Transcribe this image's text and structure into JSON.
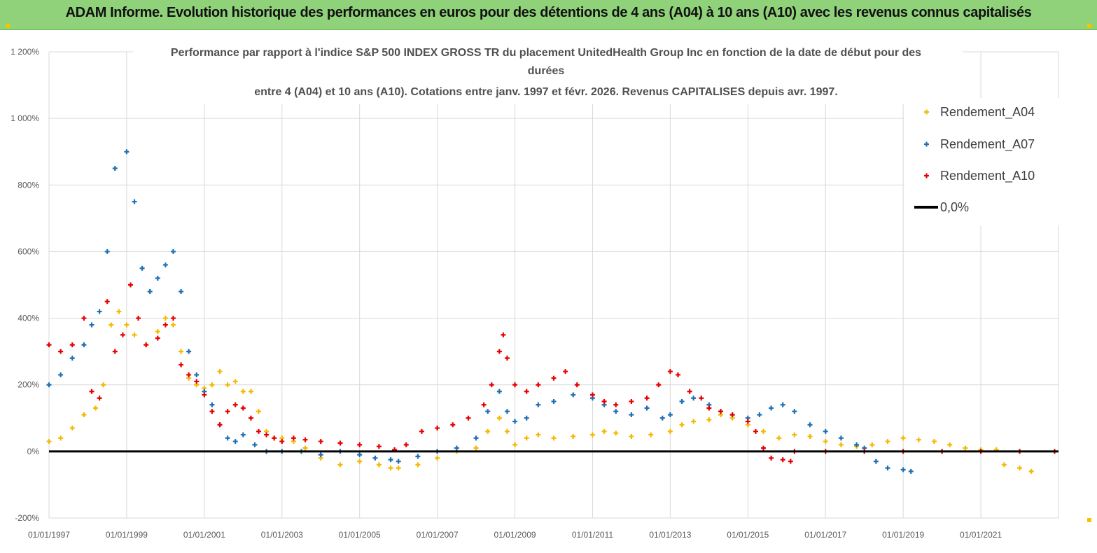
{
  "banner": {
    "title": "ADAM Informe. Evolution historique des performances en euros pour des détentions de 4 ans (A04) à 10 ans (A10) avec les revenus connus capitalisés"
  },
  "chart_data": {
    "type": "scatter",
    "title_lines": [
      "Performance par rapport à l'indice S&P 500 INDEX GROSS TR  du placement UnitedHealth Group Inc en fonction de la date de début pour des",
      "durées",
      "entre 4 (A04) et 10 ans (A10). Cotations entre janv. 1997 et févr. 2026. Revenus CAPITALISES depuis avr. 1997."
    ],
    "xlabel": "",
    "ylabel": "",
    "ylim": [
      -200,
      1200
    ],
    "xlim": [
      1997.0,
      2023.0
    ],
    "y_ticks": [
      "1 200%",
      "1 000%",
      "800%",
      "600%",
      "400%",
      "200%",
      "0%",
      "-200%"
    ],
    "y_tick_values": [
      1200,
      1000,
      800,
      600,
      400,
      200,
      0,
      -200
    ],
    "x_ticks": [
      "01/01/1997",
      "01/01/1999",
      "01/01/2001",
      "01/01/2003",
      "01/01/2005",
      "01/01/2007",
      "01/01/2009",
      "01/01/2011",
      "01/01/2013",
      "01/01/2015",
      "01/01/2017",
      "01/01/2019",
      "01/01/2021"
    ],
    "x_tick_values": [
      1997,
      1999,
      2001,
      2003,
      2005,
      2007,
      2009,
      2011,
      2013,
      2015,
      2017,
      2019,
      2021
    ],
    "grid": true,
    "legend_position": "top-right",
    "zero_line": {
      "label": "0,0%",
      "value": 0,
      "color": "#000000"
    },
    "series": [
      {
        "name": "Rendement_A04",
        "color": "#f5b800",
        "points": [
          [
            1997.0,
            30
          ],
          [
            1997.3,
            40
          ],
          [
            1997.6,
            70
          ],
          [
            1997.9,
            110
          ],
          [
            1998.2,
            130
          ],
          [
            1998.4,
            200
          ],
          [
            1998.6,
            380
          ],
          [
            1998.8,
            420
          ],
          [
            1999.0,
            380
          ],
          [
            1999.2,
            350
          ],
          [
            1999.5,
            320
          ],
          [
            1999.8,
            360
          ],
          [
            2000.0,
            400
          ],
          [
            2000.2,
            380
          ],
          [
            2000.4,
            300
          ],
          [
            2000.6,
            220
          ],
          [
            2000.8,
            200
          ],
          [
            2001.0,
            190
          ],
          [
            2001.2,
            200
          ],
          [
            2001.4,
            240
          ],
          [
            2001.6,
            200
          ],
          [
            2001.8,
            210
          ],
          [
            2002.0,
            180
          ],
          [
            2002.2,
            180
          ],
          [
            2002.4,
            120
          ],
          [
            2002.6,
            60
          ],
          [
            2002.8,
            40
          ],
          [
            2003.0,
            40
          ],
          [
            2003.3,
            30
          ],
          [
            2003.6,
            10
          ],
          [
            2004.0,
            -20
          ],
          [
            2004.5,
            -40
          ],
          [
            2005.0,
            -30
          ],
          [
            2005.5,
            -40
          ],
          [
            2005.8,
            -50
          ],
          [
            2006.0,
            -50
          ],
          [
            2006.5,
            -40
          ],
          [
            2007.0,
            -20
          ],
          [
            2007.5,
            0
          ],
          [
            2008.0,
            10
          ],
          [
            2008.3,
            60
          ],
          [
            2008.6,
            100
          ],
          [
            2008.8,
            60
          ],
          [
            2009.0,
            20
          ],
          [
            2009.3,
            40
          ],
          [
            2009.6,
            50
          ],
          [
            2010.0,
            40
          ],
          [
            2010.5,
            45
          ],
          [
            2011.0,
            50
          ],
          [
            2011.3,
            60
          ],
          [
            2011.6,
            55
          ],
          [
            2012.0,
            45
          ],
          [
            2012.5,
            50
          ],
          [
            2013.0,
            60
          ],
          [
            2013.3,
            80
          ],
          [
            2013.6,
            90
          ],
          [
            2014.0,
            95
          ],
          [
            2014.3,
            110
          ],
          [
            2014.6,
            100
          ],
          [
            2015.0,
            80
          ],
          [
            2015.4,
            60
          ],
          [
            2015.8,
            40
          ],
          [
            2016.2,
            50
          ],
          [
            2016.6,
            45
          ],
          [
            2017.0,
            30
          ],
          [
            2017.4,
            20
          ],
          [
            2017.8,
            15
          ],
          [
            2018.2,
            20
          ],
          [
            2018.6,
            30
          ],
          [
            2019.0,
            40
          ],
          [
            2019.4,
            35
          ],
          [
            2019.8,
            30
          ],
          [
            2020.2,
            20
          ],
          [
            2020.6,
            10
          ],
          [
            2021.0,
            5
          ],
          [
            2021.4,
            5
          ],
          [
            2021.6,
            -40
          ],
          [
            2022.0,
            -50
          ],
          [
            2022.3,
            -60
          ]
        ]
      },
      {
        "name": "Rendement_A07",
        "color": "#1f6fb4",
        "points": [
          [
            1997.0,
            200
          ],
          [
            1997.3,
            230
          ],
          [
            1997.6,
            280
          ],
          [
            1997.9,
            320
          ],
          [
            1998.1,
            380
          ],
          [
            1998.3,
            420
          ],
          [
            1998.5,
            600
          ],
          [
            1998.7,
            850
          ],
          [
            1999.0,
            900
          ],
          [
            1999.2,
            750
          ],
          [
            1999.4,
            550
          ],
          [
            1999.6,
            480
          ],
          [
            1999.8,
            520
          ],
          [
            2000.0,
            560
          ],
          [
            2000.2,
            600
          ],
          [
            2000.4,
            480
          ],
          [
            2000.6,
            300
          ],
          [
            2000.8,
            230
          ],
          [
            2001.0,
            180
          ],
          [
            2001.2,
            140
          ],
          [
            2001.4,
            80
          ],
          [
            2001.6,
            40
          ],
          [
            2001.8,
            30
          ],
          [
            2002.0,
            50
          ],
          [
            2002.3,
            20
          ],
          [
            2002.6,
            0
          ],
          [
            2003.0,
            0
          ],
          [
            2003.5,
            0
          ],
          [
            2004.0,
            -10
          ],
          [
            2004.5,
            0
          ],
          [
            2005.0,
            -10
          ],
          [
            2005.4,
            -20
          ],
          [
            2005.8,
            -25
          ],
          [
            2006.0,
            -30
          ],
          [
            2006.5,
            -15
          ],
          [
            2007.0,
            0
          ],
          [
            2007.5,
            10
          ],
          [
            2008.0,
            40
          ],
          [
            2008.3,
            120
          ],
          [
            2008.6,
            180
          ],
          [
            2008.8,
            120
          ],
          [
            2009.0,
            90
          ],
          [
            2009.3,
            100
          ],
          [
            2009.6,
            140
          ],
          [
            2010.0,
            150
          ],
          [
            2010.5,
            170
          ],
          [
            2011.0,
            160
          ],
          [
            2011.3,
            140
          ],
          [
            2011.6,
            120
          ],
          [
            2012.0,
            110
          ],
          [
            2012.4,
            130
          ],
          [
            2012.8,
            100
          ],
          [
            2013.0,
            110
          ],
          [
            2013.3,
            150
          ],
          [
            2013.6,
            160
          ],
          [
            2014.0,
            140
          ],
          [
            2014.3,
            120
          ],
          [
            2014.6,
            110
          ],
          [
            2015.0,
            100
          ],
          [
            2015.3,
            110
          ],
          [
            2015.6,
            130
          ],
          [
            2015.9,
            140
          ],
          [
            2016.2,
            120
          ],
          [
            2016.6,
            80
          ],
          [
            2017.0,
            60
          ],
          [
            2017.4,
            40
          ],
          [
            2017.8,
            20
          ],
          [
            2018.0,
            10
          ],
          [
            2018.3,
            -30
          ],
          [
            2018.6,
            -50
          ],
          [
            2019.0,
            -55
          ],
          [
            2019.2,
            -60
          ]
        ]
      },
      {
        "name": "Rendement_A10",
        "color": "#e60000",
        "points": [
          [
            1997.0,
            320
          ],
          [
            1997.3,
            300
          ],
          [
            1997.6,
            320
          ],
          [
            1997.9,
            400
          ],
          [
            1998.1,
            180
          ],
          [
            1998.3,
            160
          ],
          [
            1998.5,
            450
          ],
          [
            1998.7,
            300
          ],
          [
            1998.9,
            350
          ],
          [
            1999.1,
            500
          ],
          [
            1999.3,
            400
          ],
          [
            1999.5,
            320
          ],
          [
            1999.8,
            340
          ],
          [
            2000.0,
            380
          ],
          [
            2000.2,
            400
          ],
          [
            2000.4,
            260
          ],
          [
            2000.6,
            230
          ],
          [
            2000.8,
            210
          ],
          [
            2001.0,
            170
          ],
          [
            2001.2,
            120
          ],
          [
            2001.4,
            80
          ],
          [
            2001.6,
            120
          ],
          [
            2001.8,
            140
          ],
          [
            2002.0,
            130
          ],
          [
            2002.2,
            100
          ],
          [
            2002.4,
            60
          ],
          [
            2002.6,
            50
          ],
          [
            2002.8,
            40
          ],
          [
            2003.0,
            30
          ],
          [
            2003.3,
            40
          ],
          [
            2003.6,
            35
          ],
          [
            2004.0,
            30
          ],
          [
            2004.5,
            25
          ],
          [
            2005.0,
            20
          ],
          [
            2005.5,
            15
          ],
          [
            2005.9,
            5
          ],
          [
            2006.2,
            20
          ],
          [
            2006.6,
            60
          ],
          [
            2007.0,
            70
          ],
          [
            2007.4,
            80
          ],
          [
            2007.8,
            100
          ],
          [
            2008.2,
            140
          ],
          [
            2008.4,
            200
          ],
          [
            2008.6,
            300
          ],
          [
            2008.7,
            350
          ],
          [
            2008.8,
            280
          ],
          [
            2009.0,
            200
          ],
          [
            2009.3,
            180
          ],
          [
            2009.6,
            200
          ],
          [
            2010.0,
            220
          ],
          [
            2010.3,
            240
          ],
          [
            2010.6,
            200
          ],
          [
            2011.0,
            170
          ],
          [
            2011.3,
            150
          ],
          [
            2011.6,
            140
          ],
          [
            2012.0,
            150
          ],
          [
            2012.4,
            160
          ],
          [
            2012.7,
            200
          ],
          [
            2013.0,
            240
          ],
          [
            2013.2,
            230
          ],
          [
            2013.5,
            180
          ],
          [
            2013.8,
            160
          ],
          [
            2014.0,
            130
          ],
          [
            2014.3,
            120
          ],
          [
            2014.6,
            110
          ],
          [
            2015.0,
            90
          ],
          [
            2015.2,
            60
          ],
          [
            2015.4,
            10
          ],
          [
            2015.6,
            -20
          ],
          [
            2015.9,
            -25
          ],
          [
            2016.1,
            -30
          ],
          [
            2016.2,
            0
          ],
          [
            2017.0,
            0
          ],
          [
            2018.0,
            0
          ],
          [
            2019.0,
            0
          ],
          [
            2020.0,
            0
          ],
          [
            2021.0,
            0
          ],
          [
            2022.0,
            0
          ],
          [
            2022.9,
            0
          ]
        ]
      }
    ]
  }
}
